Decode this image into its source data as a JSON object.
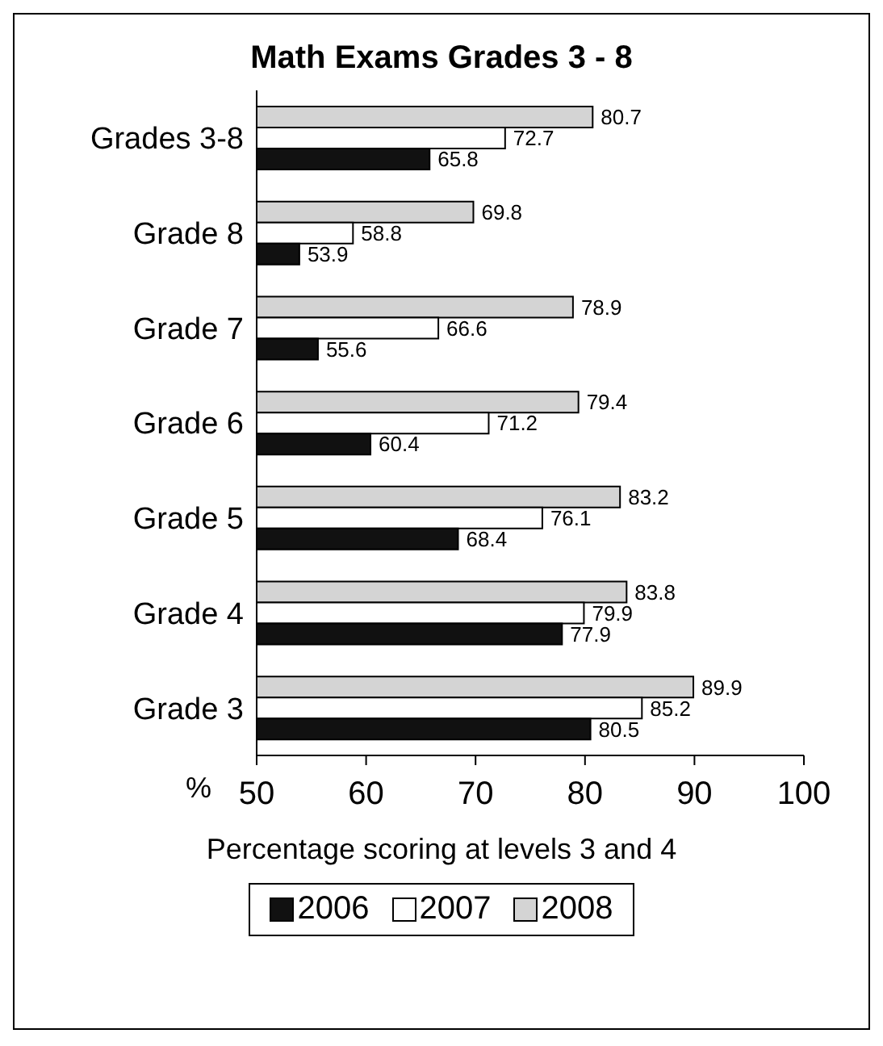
{
  "chart_data": {
    "type": "bar",
    "orientation": "horizontal",
    "title": "Math Exams Grades 3 - 8",
    "xlabel": "Percentage scoring at levels 3 and 4",
    "annotations": [
      "%"
    ],
    "categories": [
      "Grades 3-8",
      "Grade 8",
      "Grade 7",
      "Grade 6",
      "Grade 5",
      "Grade 4",
      "Grade 3"
    ],
    "series": [
      {
        "name": "2006",
        "color": "#111111",
        "values": [
          65.8,
          53.9,
          55.6,
          60.4,
          68.4,
          77.9,
          80.5
        ]
      },
      {
        "name": "2007",
        "color": "#ffffff",
        "values": [
          72.7,
          58.8,
          66.6,
          71.2,
          76.1,
          79.9,
          85.2
        ]
      },
      {
        "name": "2008",
        "color": "#d4d4d4",
        "values": [
          80.7,
          69.8,
          78.9,
          79.4,
          83.2,
          83.8,
          89.9
        ]
      }
    ],
    "xlim": [
      50,
      100
    ],
    "xticks": [
      50,
      60,
      70,
      80,
      90,
      100
    ],
    "legend": "bottom",
    "data_labels": true
  }
}
